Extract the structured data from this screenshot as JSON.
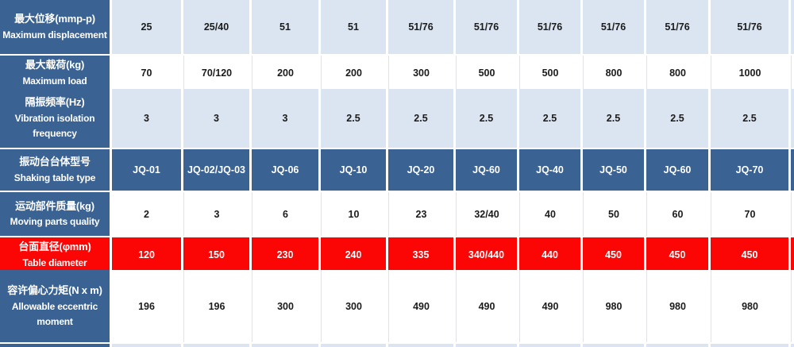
{
  "table": {
    "colors": {
      "header_blue": "#3A6292",
      "light_blue": "#DBE5F1",
      "highlight_red": "#FB0505",
      "text_dark": "#1B1B1B",
      "text_light": "#FFFFFF"
    },
    "rows": [
      {
        "label_zh": "最大位移(mmp-p)",
        "label_en": "Maximum displacement",
        "style": "light",
        "values": [
          "25",
          "25/40",
          "51",
          "51",
          "51/76",
          "51/76",
          "51/76",
          "51/76",
          "51/76",
          "51/76"
        ]
      },
      {
        "label_zh": "最大载荷(kg)",
        "label_en": "Maximum load",
        "style": "white",
        "values": [
          "70",
          "70/120",
          "200",
          "200",
          "300",
          "500",
          "500",
          "800",
          "800",
          "1000"
        ]
      },
      {
        "label_zh": "隔振频率(Hz)",
        "label_en": "Vibration isolation frequency",
        "style": "light",
        "values": [
          "3",
          "3",
          "3",
          "2.5",
          "2.5",
          "2.5",
          "2.5",
          "2.5",
          "2.5",
          "2.5"
        ]
      },
      {
        "label_zh": "振动台台体型号",
        "label_en": "Shaking table type",
        "style": "blue",
        "values": [
          "JQ-01",
          "JQ-02/JQ-03",
          "JQ-06",
          "JQ-10",
          "JQ-20",
          "JQ-60",
          "JQ-40",
          "JQ-50",
          "JQ-60",
          "JQ-70"
        ]
      },
      {
        "label_zh": "运动部件质量(kg)",
        "label_en": "Moving parts quality",
        "style": "white",
        "values": [
          "2",
          "3",
          "6",
          "10",
          "23",
          "32/40",
          "40",
          "50",
          "60",
          "70"
        ]
      },
      {
        "label_zh": "台面直径(φmm)",
        "label_en": "Table diameter",
        "style": "red",
        "values": [
          "120",
          "150",
          "230",
          "240",
          "335",
          "340/440",
          "440",
          "450",
          "450",
          "450"
        ]
      },
      {
        "label_zh": "容许偏心力矩(N x m)",
        "label_en": "Allowable eccentric moment",
        "style": "white",
        "values": [
          "196",
          "196",
          "300",
          "300",
          "490",
          "490",
          "490",
          "980",
          "980",
          "980"
        ]
      },
      {
        "label_zh": "",
        "label_en": "",
        "style": "light",
        "values": [
          "",
          "",
          "",
          "",
          "",
          "",
          "",
          "",
          "",
          ""
        ]
      }
    ]
  }
}
